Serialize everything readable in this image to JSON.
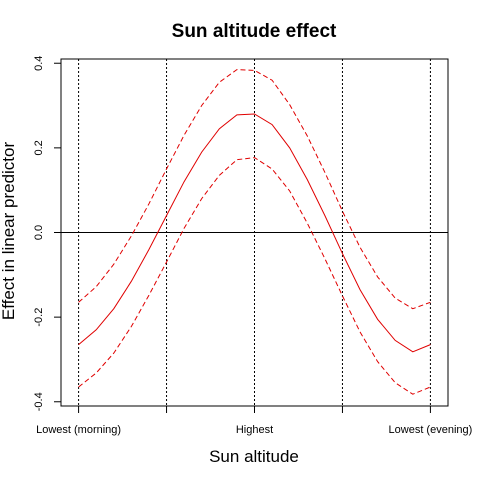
{
  "chart_data": {
    "type": "line",
    "title": "Sun altitude effect",
    "xlabel": "Sun altitude",
    "ylabel": "Effect in linear predictor",
    "xlim": [
      -0.05,
      1.05
    ],
    "ylim": [
      -0.41,
      0.41
    ],
    "x_ticks": [
      0,
      0.25,
      0.5,
      0.75,
      1
    ],
    "x_tick_labels": [
      "Lowest (morning)",
      "",
      "Highest",
      "",
      "Lowest (evening)"
    ],
    "y_ticks": [
      -0.4,
      -0.2,
      0.0,
      0.2,
      0.4
    ],
    "y_tick_labels": [
      "-0.4",
      "-0.2",
      "0.0",
      "0.2",
      "0.4"
    ],
    "vertical_reference_lines": [
      0,
      0.25,
      0.5,
      0.75,
      1
    ],
    "horizontal_reference_line": 0,
    "x": [
      0,
      0.05,
      0.1,
      0.15,
      0.2,
      0.25,
      0.3,
      0.35,
      0.4,
      0.45,
      0.5,
      0.55,
      0.6,
      0.65,
      0.7,
      0.75,
      0.8,
      0.85,
      0.9,
      0.95,
      1
    ],
    "series": [
      {
        "style": "solid",
        "color": "#e00000",
        "values": [
          -0.265,
          -0.23,
          -0.18,
          -0.115,
          -0.04,
          0.04,
          0.12,
          0.19,
          0.245,
          0.278,
          0.28,
          0.255,
          0.2,
          0.125,
          0.04,
          -0.05,
          -0.135,
          -0.205,
          -0.255,
          -0.282,
          -0.265
        ]
      },
      {
        "style": "dashed",
        "color": "#e00000",
        "values": [
          -0.165,
          -0.128,
          -0.075,
          -0.008,
          0.068,
          0.15,
          0.23,
          0.3,
          0.355,
          0.385,
          0.383,
          0.36,
          0.302,
          0.228,
          0.142,
          0.05,
          -0.035,
          -0.105,
          -0.155,
          -0.18,
          -0.165
        ]
      },
      {
        "style": "dashed",
        "color": "#e00000",
        "values": [
          -0.365,
          -0.332,
          -0.285,
          -0.222,
          -0.148,
          -0.07,
          0.01,
          0.08,
          0.135,
          0.172,
          0.177,
          0.15,
          0.098,
          0.022,
          -0.062,
          -0.15,
          -0.235,
          -0.305,
          -0.355,
          -0.382,
          -0.365
        ]
      }
    ]
  }
}
